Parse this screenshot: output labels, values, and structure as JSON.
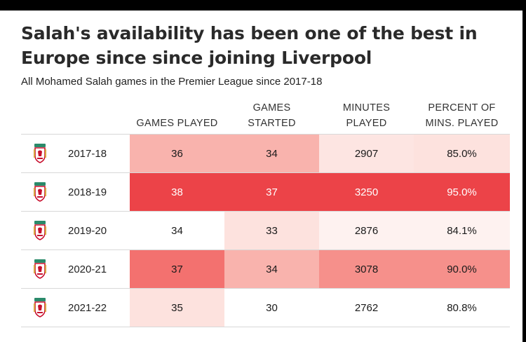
{
  "title": "Salah's availability has been one of the best in Europe since since joining Liverpool",
  "subtitle": "All Mohamed Salah games in the Premier League since 2017-18",
  "chart_data": {
    "type": "table",
    "columns": [
      {
        "key": "games_played",
        "label": "GAMES PLAYED"
      },
      {
        "key": "games_started",
        "label": "GAMES STARTED"
      },
      {
        "key": "minutes_played",
        "label": "MINUTES PLAYED"
      },
      {
        "key": "pct_mins",
        "label": "PERCENT OF MINS. PLAYED"
      }
    ],
    "rows": [
      {
        "season": "2017-18",
        "games_played": "36",
        "games_started": "34",
        "minutes_played": "2907",
        "pct_mins": "85.0%",
        "fills": {
          "games_played": "#f9b3ad",
          "games_started": "#f9b3ad",
          "minutes_played": "#fde5e2",
          "pct_mins": "#fde2de"
        }
      },
      {
        "season": "2018-19",
        "games_played": "38",
        "games_started": "37",
        "minutes_played": "3250",
        "pct_mins": "95.0%",
        "fills": {
          "games_played": "#ec4348",
          "games_started": "#ec4348",
          "minutes_played": "#ec4348",
          "pct_mins": "#ec4348"
        }
      },
      {
        "season": "2019-20",
        "games_played": "34",
        "games_started": "33",
        "minutes_played": "2876",
        "pct_mins": "84.1%",
        "fills": {
          "games_played": "#ffffff",
          "games_started": "#fde2de",
          "minutes_played": "#fef2f0",
          "pct_mins": "#fef2f0"
        }
      },
      {
        "season": "2020-21",
        "games_played": "37",
        "games_started": "34",
        "minutes_played": "3078",
        "pct_mins": "90.0%",
        "fills": {
          "games_played": "#f3716f",
          "games_started": "#f9b3ad",
          "minutes_played": "#f6908b",
          "pct_mins": "#f6908b"
        }
      },
      {
        "season": "2021-22",
        "games_played": "35",
        "games_started": "30",
        "minutes_played": "2762",
        "pct_mins": "80.8%",
        "fills": {
          "games_played": "#fde2de",
          "games_started": "#ffffff",
          "minutes_played": "#ffffff",
          "pct_mins": "#ffffff"
        }
      }
    ],
    "row_icon": "liverpool-crest-icon",
    "light_text_color": "#ffffff",
    "dark_text_color": "#1a1a1a"
  }
}
